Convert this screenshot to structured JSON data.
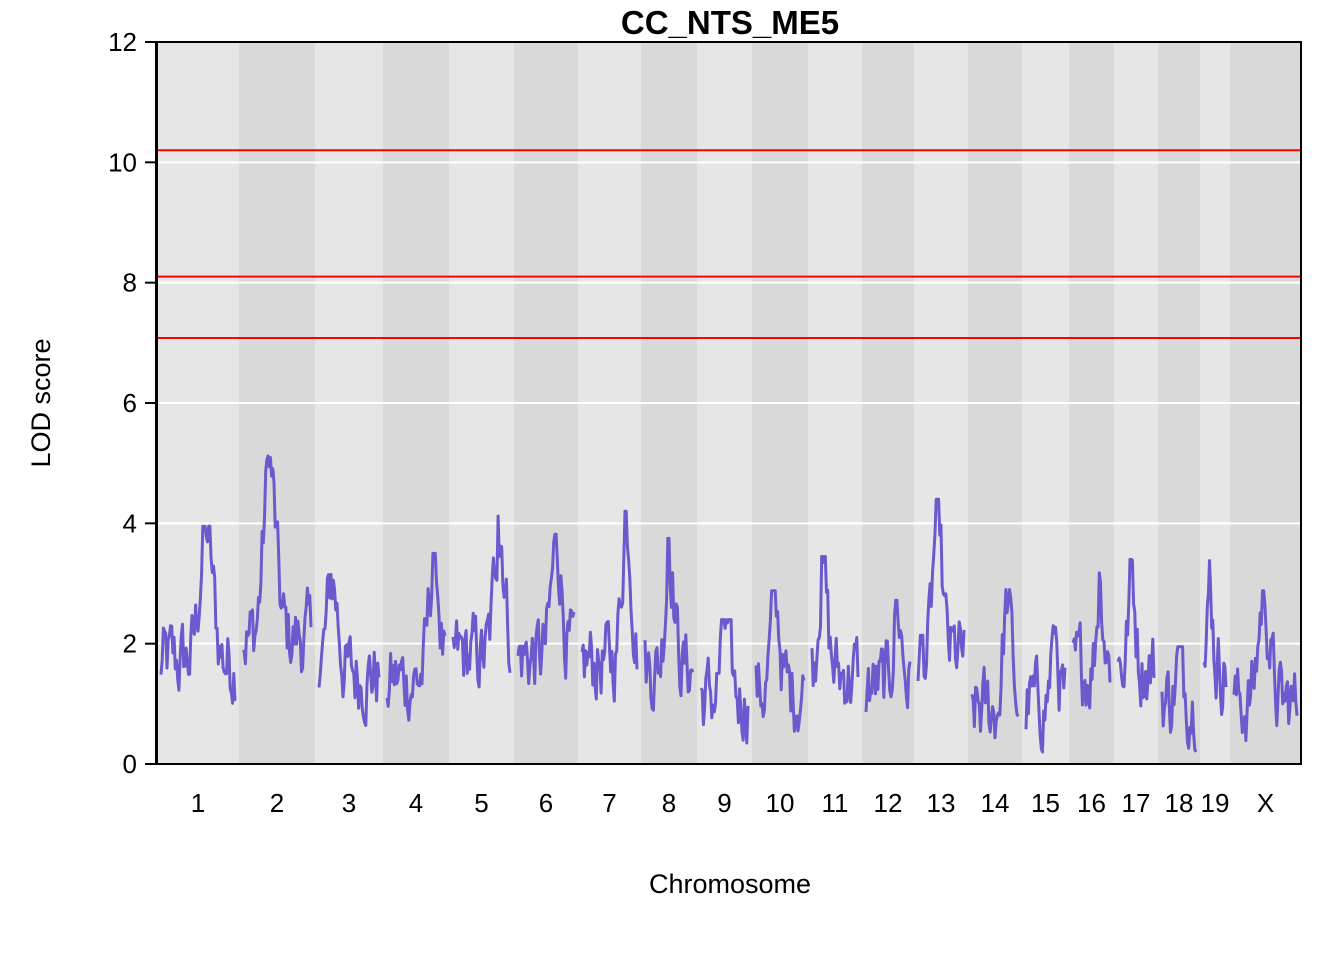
{
  "chart_data": {
    "type": "line",
    "title": "CC_NTS_ME5",
    "xlabel": "Chromosome",
    "ylabel": "LOD score",
    "ylim": [
      0,
      12
    ],
    "yticks": [
      "0",
      "2",
      "4",
      "6",
      "8",
      "10",
      "12"
    ],
    "grid": true,
    "line_color": "#6a5acd",
    "threshold_color": "#ff0000",
    "thresholds": [
      10.2,
      8.1,
      7.08
    ],
    "chromosomes": [
      {
        "label": "1",
        "peak": 3.95,
        "base": 1.7
      },
      {
        "label": "2",
        "peak": 5.12,
        "base": 2.1
      },
      {
        "label": "3",
        "peak": 3.15,
        "base": 1.5
      },
      {
        "label": "4",
        "peak": 3.5,
        "base": 1.4
      },
      {
        "label": "5",
        "peak": 4.12,
        "base": 1.8
      },
      {
        "label": "6",
        "peak": 3.82,
        "base": 1.8
      },
      {
        "label": "7",
        "peak": 4.2,
        "base": 1.7
      },
      {
        "label": "8",
        "peak": 3.75,
        "base": 1.6
      },
      {
        "label": "9",
        "peak": 2.4,
        "base": 1.1
      },
      {
        "label": "10",
        "peak": 2.88,
        "base": 1.2
      },
      {
        "label": "11",
        "peak": 3.45,
        "base": 1.5
      },
      {
        "label": "12",
        "peak": 2.72,
        "base": 1.3
      },
      {
        "label": "13",
        "peak": 4.4,
        "base": 1.8
      },
      {
        "label": "14",
        "peak": 2.9,
        "base": 0.9
      },
      {
        "label": "15",
        "peak": 2.3,
        "base": 1.0
      },
      {
        "label": "16",
        "peak": 3.18,
        "base": 1.6
      },
      {
        "label": "17",
        "peak": 3.4,
        "base": 1.6
      },
      {
        "label": "18",
        "peak": 1.95,
        "base": 1.1
      },
      {
        "label": "19",
        "peak": 3.38,
        "base": 1.6
      },
      {
        "label": "X",
        "peak": 2.88,
        "base": 1.0
      }
    ]
  }
}
